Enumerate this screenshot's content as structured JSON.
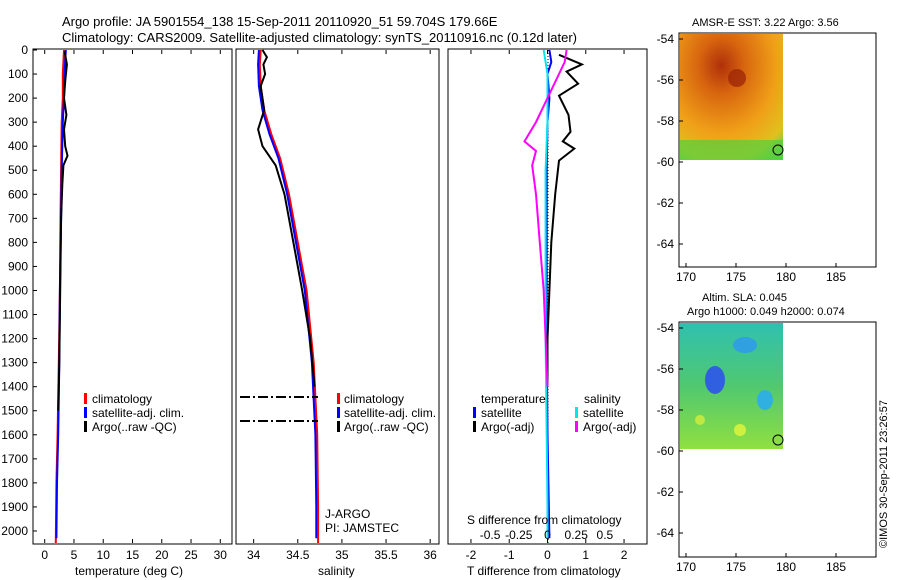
{
  "header": {
    "line1": "Argo profile: JA 5901554_138 15-Sep-2011 20110920_51 59.704S 179.66E",
    "line2": "Climatology: CARS2009. Satellite-adjusted climatology: synTS_20110916.nc (0.12d later)"
  },
  "footer": {
    "stamp": "©IMOS 30-Sep-2011 23:26:57"
  },
  "colors": {
    "climatology": "#ff0000",
    "satellite_adj": "#0000ff",
    "argo": "#000000",
    "satellite_salinity": "#00e5ee",
    "argo_salinity_adj": "#ff00ff"
  },
  "chart_data": [
    {
      "type": "line",
      "id": "temperature",
      "xlabel": "temperature (deg C)",
      "xlim": [
        -2,
        32
      ],
      "xticks": [
        0,
        5,
        10,
        15,
        20,
        25,
        30
      ],
      "ylim": [
        0,
        2050
      ],
      "yticks": [
        0,
        100,
        200,
        300,
        400,
        500,
        600,
        700,
        800,
        900,
        1000,
        1100,
        1200,
        1300,
        1400,
        1500,
        1600,
        1700,
        1800,
        1900,
        2000
      ],
      "legend": [
        "climatology",
        "satellite-adj. clim.",
        "Argo(..raw -QC)"
      ],
      "series": [
        {
          "name": "climatology",
          "color": "#ff0000",
          "points": [
            [
              3.3,
              0
            ],
            [
              3.2,
              50
            ],
            [
              3.1,
              100
            ],
            [
              3.1,
              200
            ],
            [
              2.9,
              300
            ],
            [
              2.8,
              500
            ],
            [
              2.7,
              700
            ],
            [
              2.6,
              1000
            ],
            [
              2.4,
              1300
            ],
            [
              2.2,
              1600
            ],
            [
              2.0,
              1800
            ],
            [
              1.9,
              2050
            ]
          ]
        },
        {
          "name": "satellite-adj. clim.",
          "color": "#0000ff",
          "points": [
            [
              3.6,
              0
            ],
            [
              3.5,
              50
            ],
            [
              3.4,
              100
            ],
            [
              3.3,
              200
            ],
            [
              3.1,
              300
            ],
            [
              2.9,
              500
            ],
            [
              2.8,
              700
            ],
            [
              2.6,
              1000
            ],
            [
              2.5,
              1300
            ],
            [
              2.3,
              1600
            ],
            [
              2.1,
              1800
            ],
            [
              2.0,
              2030
            ]
          ]
        },
        {
          "name": "Argo(..raw -QC)",
          "color": "#000000",
          "points": [
            [
              3.4,
              5
            ],
            [
              3.8,
              60
            ],
            [
              3.5,
              130
            ],
            [
              3.3,
              200
            ],
            [
              3.7,
              270
            ],
            [
              3.3,
              330
            ],
            [
              3.5,
              400
            ],
            [
              3.9,
              440
            ],
            [
              3.2,
              480
            ],
            [
              3.0,
              560
            ],
            [
              2.8,
              700
            ],
            [
              2.7,
              900
            ],
            [
              2.6,
              1100
            ],
            [
              2.5,
              1300
            ],
            [
              2.3,
              1500
            ]
          ]
        }
      ]
    },
    {
      "type": "line",
      "id": "salinity",
      "xlabel": "salinity",
      "xlim": [
        33.8,
        36.1
      ],
      "xticks": [
        34,
        34.5,
        35,
        35.5,
        36
      ],
      "ylim": [
        0,
        2050
      ],
      "legend": [
        "climatology",
        "satellite-adj. clim.",
        "Argo(..raw -QC)"
      ],
      "annotation": [
        "J-ARGO",
        "PI: JAMSTEC"
      ],
      "series": [
        {
          "name": "climatology",
          "color": "#ff0000",
          "points": [
            [
              34.08,
              0
            ],
            [
              34.07,
              60
            ],
            [
              34.08,
              150
            ],
            [
              34.12,
              250
            ],
            [
              34.2,
              350
            ],
            [
              34.3,
              450
            ],
            [
              34.4,
              600
            ],
            [
              34.5,
              800
            ],
            [
              34.6,
              1000
            ],
            [
              34.68,
              1300
            ],
            [
              34.72,
              1600
            ],
            [
              34.73,
              1900
            ],
            [
              34.73,
              2050
            ]
          ]
        },
        {
          "name": "satellite-adj. clim.",
          "color": "#0000ff",
          "points": [
            [
              34.06,
              0
            ],
            [
              34.05,
              60
            ],
            [
              34.06,
              150
            ],
            [
              34.1,
              250
            ],
            [
              34.18,
              350
            ],
            [
              34.28,
              450
            ],
            [
              34.38,
              600
            ],
            [
              34.48,
              800
            ],
            [
              34.58,
              1000
            ],
            [
              34.66,
              1300
            ],
            [
              34.7,
              1600
            ],
            [
              34.71,
              1900
            ],
            [
              34.71,
              2030
            ]
          ]
        },
        {
          "name": "Argo(..raw -QC)",
          "color": "#000000",
          "points": [
            [
              34.1,
              0
            ],
            [
              34.15,
              30
            ],
            [
              34.11,
              60
            ],
            [
              34.13,
              100
            ],
            [
              34.08,
              150
            ],
            [
              34.12,
              250
            ],
            [
              34.05,
              330
            ],
            [
              34.1,
              400
            ],
            [
              34.25,
              480
            ],
            [
              34.35,
              600
            ],
            [
              34.45,
              800
            ],
            [
              34.55,
              1000
            ],
            [
              34.64,
              1200
            ],
            [
              34.69,
              1400
            ]
          ]
        }
      ],
      "dashed_levels": [
        1440,
        1530
      ]
    },
    {
      "type": "line",
      "id": "difference",
      "xlabel": "T difference from climatology",
      "xlabel_top": "S difference from climatology",
      "xlim": [
        -2.6,
        2.6
      ],
      "xticks": [
        -2,
        -1,
        0,
        1,
        2
      ],
      "xticks_top": [
        "-0.5",
        "-0.25",
        "0",
        "0.25",
        "0.5"
      ],
      "ylim": [
        0,
        2050
      ],
      "legend_headers": [
        "temperature",
        "salinity"
      ],
      "legend": [
        "satellite",
        "Argo(-adj)",
        "satellite",
        "Argo(-adj)"
      ],
      "series": [
        {
          "name": "satellite",
          "color": "#0000ff",
          "points": [
            [
              0.05,
              0
            ],
            [
              0.1,
              50
            ],
            [
              0.0,
              100
            ],
            [
              0.05,
              200
            ],
            [
              0.0,
              300
            ],
            [
              -0.02,
              500
            ],
            [
              -0.02,
              800
            ],
            [
              -0.02,
              1200
            ],
            [
              0.0,
              1600
            ],
            [
              0.05,
              2030
            ]
          ]
        },
        {
          "name": "Argo(-adj)",
          "color": "#000000",
          "points": [
            [
              0.3,
              20
            ],
            [
              0.9,
              60
            ],
            [
              0.5,
              90
            ],
            [
              0.8,
              140
            ],
            [
              0.3,
              190
            ],
            [
              0.55,
              270
            ],
            [
              0.6,
              340
            ],
            [
              0.4,
              380
            ],
            [
              0.7,
              410
            ],
            [
              0.3,
              460
            ],
            [
              0.2,
              600
            ],
            [
              0.1,
              800
            ],
            [
              0.05,
              1000
            ],
            [
              0.0,
              1200
            ],
            [
              0.0,
              1400
            ]
          ]
        },
        {
          "name": "satellite",
          "color": "#00e5ee",
          "points": [
            [
              -0.1,
              0
            ],
            [
              -0.05,
              50
            ],
            [
              0.0,
              100
            ],
            [
              0.0,
              300
            ],
            [
              -0.05,
              500
            ],
            [
              -0.05,
              800
            ],
            [
              -0.05,
              1200
            ],
            [
              -0.02,
              1600
            ],
            [
              0.0,
              1900
            ],
            [
              0.0,
              2030
            ]
          ]
        },
        {
          "name": "Argo(-adj)",
          "color": "#ff00ff",
          "points": [
            [
              0.5,
              0
            ],
            [
              0.45,
              50
            ],
            [
              0.3,
              100
            ],
            [
              0.0,
              200
            ],
            [
              -0.3,
              300
            ],
            [
              -0.6,
              380
            ],
            [
              -0.3,
              420
            ],
            [
              -0.4,
              480
            ],
            [
              -0.3,
              600
            ],
            [
              -0.2,
              800
            ],
            [
              -0.1,
              1000
            ],
            [
              -0.05,
              1200
            ],
            [
              0.0,
              1400
            ]
          ]
        }
      ]
    }
  ],
  "maps": [
    {
      "id": "sst",
      "title": "AMSR-E SST: 3.22  Argo: 3.56",
      "xticks": [
        "170",
        "175",
        "180",
        "185"
      ],
      "yticks": [
        "-54",
        "-56",
        "-58",
        "-60",
        "-62",
        "-64"
      ]
    },
    {
      "id": "sla",
      "title_line1": "Altim. SLA: 0.045",
      "title_line2": "Argo h1000: 0.049 h2000: 0.074",
      "xticks": [
        "170",
        "175",
        "180",
        "185"
      ],
      "yticks": [
        "-54",
        "-56",
        "-58",
        "-60",
        "-62",
        "-64"
      ]
    }
  ]
}
